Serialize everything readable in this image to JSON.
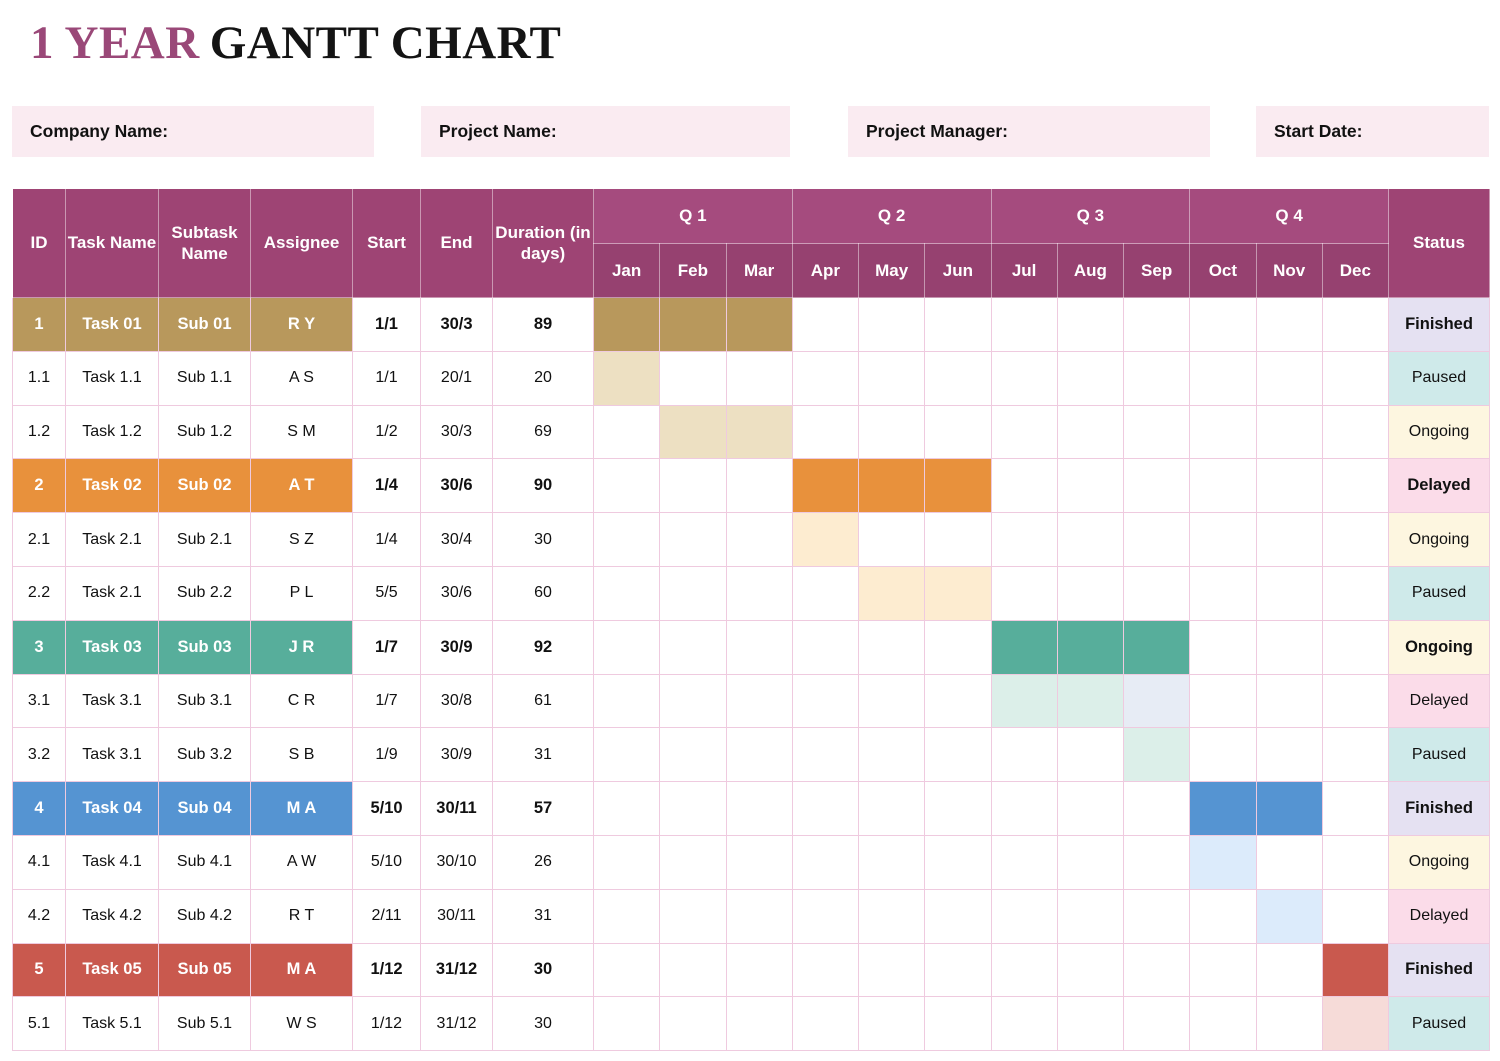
{
  "title": {
    "accent": "1 YEAR",
    "rest": "GANTT CHART",
    "accent_color": "#9A4878"
  },
  "fields": {
    "company": "Company Name:",
    "project": "Project Name:",
    "manager": "Project Manager:",
    "start_date": "Start Date:"
  },
  "table": {
    "headers": {
      "id": "ID",
      "task": "Task Name",
      "subtask": "Subtask Name",
      "assignee": "Assignee",
      "start": "Start",
      "end": "End",
      "duration": "Duration (in days)",
      "status": "Status"
    },
    "quarters": [
      "Q 1",
      "Q 2",
      "Q 3",
      "Q 4"
    ],
    "months": [
      "Jan",
      "Feb",
      "Mar",
      "Apr",
      "May",
      "Jun",
      "Jul",
      "Aug",
      "Sep",
      "Oct",
      "Nov",
      "Dec"
    ],
    "rows": [
      {
        "id": "1",
        "task": "Task 01",
        "subtask": "Sub 01",
        "assignee": "R Y",
        "start": "1/1",
        "end": "30/3",
        "duration": "89",
        "status": "Finished",
        "type": "main",
        "color": "#B8985C",
        "gantt": [
          {
            "m": 1,
            "c": "#B8985C"
          },
          {
            "m": 2,
            "c": "#B8985C"
          },
          {
            "m": 3,
            "c": "#B8985C"
          }
        ]
      },
      {
        "id": "1.1",
        "task": "Task 1.1",
        "subtask": "Sub 1.1",
        "assignee": "A S",
        "start": "1/1",
        "end": "20/1",
        "duration": "20",
        "status": "Paused",
        "type": "sub",
        "gantt": [
          {
            "m": 1,
            "c": "#EDE0C2"
          }
        ]
      },
      {
        "id": "1.2",
        "task": "Task 1.2",
        "subtask": "Sub 1.2",
        "assignee": "S M",
        "start": "1/2",
        "end": "30/3",
        "duration": "69",
        "status": "Ongoing",
        "type": "sub",
        "gantt": [
          {
            "m": 2,
            "c": "#EDE0C2"
          },
          {
            "m": 3,
            "c": "#EDE0C2"
          }
        ]
      },
      {
        "id": "2",
        "task": "Task 02",
        "subtask": "Sub 02",
        "assignee": "A T",
        "start": "1/4",
        "end": "30/6",
        "duration": "90",
        "status": "Delayed",
        "type": "main",
        "color": "#E8913C",
        "gantt": [
          {
            "m": 4,
            "c": "#E8913C"
          },
          {
            "m": 5,
            "c": "#E8913C"
          },
          {
            "m": 6,
            "c": "#E8913C"
          }
        ]
      },
      {
        "id": "2.1",
        "task": "Task 2.1",
        "subtask": "Sub 2.1",
        "assignee": "S Z",
        "start": "1/4",
        "end": "30/4",
        "duration": "30",
        "status": "Ongoing",
        "type": "sub",
        "gantt": [
          {
            "m": 4,
            "c": "#FDECD0"
          }
        ]
      },
      {
        "id": "2.2",
        "task": "Task 2.1",
        "subtask": "Sub 2.2",
        "assignee": "P L",
        "start": "5/5",
        "end": "30/6",
        "duration": "60",
        "status": "Paused",
        "type": "sub",
        "gantt": [
          {
            "m": 5,
            "c": "#FDECD0"
          },
          {
            "m": 6,
            "c": "#FDECD0"
          }
        ]
      },
      {
        "id": "3",
        "task": "Task 03",
        "subtask": "Sub 03",
        "assignee": "J R",
        "start": "1/7",
        "end": "30/9",
        "duration": "92",
        "status": "Ongoing",
        "type": "main",
        "color": "#57AE9B",
        "gantt": [
          {
            "m": 7,
            "c": "#57AE9B"
          },
          {
            "m": 8,
            "c": "#57AE9B"
          },
          {
            "m": 9,
            "c": "#57AE9B"
          }
        ]
      },
      {
        "id": "3.1",
        "task": "Task 3.1",
        "subtask": "Sub 3.1",
        "assignee": "C R",
        "start": "1/7",
        "end": "30/8",
        "duration": "61",
        "status": "Delayed",
        "type": "sub",
        "gantt": [
          {
            "m": 7,
            "c": "#DCEFE9"
          },
          {
            "m": 8,
            "c": "#DCEFE9"
          },
          {
            "m": 9,
            "c": "#E7ECF5"
          }
        ]
      },
      {
        "id": "3.2",
        "task": "Task 3.1",
        "subtask": "Sub 3.2",
        "assignee": "S B",
        "start": "1/9",
        "end": "30/9",
        "duration": "31",
        "status": "Paused",
        "type": "sub",
        "gantt": [
          {
            "m": 9,
            "c": "#DCEFE9"
          }
        ]
      },
      {
        "id": "4",
        "task": "Task 04",
        "subtask": "Sub 04",
        "assignee": "M A",
        "start": "5/10",
        "end": "30/11",
        "duration": "57",
        "status": "Finished",
        "type": "main",
        "color": "#5594D2",
        "gantt": [
          {
            "m": 10,
            "c": "#5594D2"
          },
          {
            "m": 11,
            "c": "#5594D2"
          }
        ]
      },
      {
        "id": "4.1",
        "task": "Task 4.1",
        "subtask": "Sub 4.1",
        "assignee": "A W",
        "start": "5/10",
        "end": "30/10",
        "duration": "26",
        "status": "Ongoing",
        "type": "sub",
        "gantt": [
          {
            "m": 10,
            "c": "#DCEBFB"
          }
        ]
      },
      {
        "id": "4.2",
        "task": "Task 4.2",
        "subtask": "Sub 4.2",
        "assignee": "R T",
        "start": "2/11",
        "end": "30/11",
        "duration": "31",
        "status": "Delayed",
        "type": "sub",
        "gantt": [
          {
            "m": 11,
            "c": "#DCEBFB"
          }
        ]
      },
      {
        "id": "5",
        "task": "Task 05",
        "subtask": "Sub 05",
        "assignee": "M A",
        "start": "1/12",
        "end": "31/12",
        "duration": "30",
        "status": "Finished",
        "type": "main",
        "color": "#C9594E",
        "gantt": [
          {
            "m": 12,
            "c": "#C9594E"
          }
        ]
      },
      {
        "id": "5.1",
        "task": "Task 5.1",
        "subtask": "Sub 5.1",
        "assignee": "W S",
        "start": "1/12",
        "end": "31/12",
        "duration": "30",
        "status": "Paused",
        "type": "sub",
        "gantt": [
          {
            "m": 12,
            "c": "#F6DBD8"
          }
        ]
      }
    ]
  },
  "status_colors": {
    "Finished": "#E5E1F2",
    "Paused": "#CFEAEA",
    "Ongoing": "#FDF6E0",
    "Delayed": "#FBDCE9"
  },
  "palette": {
    "header_purple": "#9E4474",
    "quarter_purple": "#A54B7E",
    "month_purple": "#964170",
    "grid_pink": "#EFCADF",
    "field_bg": "#FAEBF1"
  },
  "chart_data": {
    "type": "table",
    "title": "1 YEAR GANTT CHART",
    "columns": [
      "ID",
      "Task Name",
      "Subtask Name",
      "Assignee",
      "Start",
      "End",
      "Duration (in days)",
      "Jan",
      "Feb",
      "Mar",
      "Apr",
      "May",
      "Jun",
      "Jul",
      "Aug",
      "Sep",
      "Oct",
      "Nov",
      "Dec",
      "Status"
    ],
    "tasks": [
      {
        "id": "1",
        "task": "Task 01",
        "subtask": "Sub 01",
        "assignee": "R Y",
        "start": "1/1",
        "end": "30/3",
        "duration_days": 89,
        "months_active": [
          "Jan",
          "Feb",
          "Mar"
        ],
        "status": "Finished"
      },
      {
        "id": "1.1",
        "task": "Task 1.1",
        "subtask": "Sub 1.1",
        "assignee": "A S",
        "start": "1/1",
        "end": "20/1",
        "duration_days": 20,
        "months_active": [
          "Jan"
        ],
        "status": "Paused"
      },
      {
        "id": "1.2",
        "task": "Task 1.2",
        "subtask": "Sub 1.2",
        "assignee": "S M",
        "start": "1/2",
        "end": "30/3",
        "duration_days": 69,
        "months_active": [
          "Feb",
          "Mar"
        ],
        "status": "Ongoing"
      },
      {
        "id": "2",
        "task": "Task 02",
        "subtask": "Sub 02",
        "assignee": "A T",
        "start": "1/4",
        "end": "30/6",
        "duration_days": 90,
        "months_active": [
          "Apr",
          "May",
          "Jun"
        ],
        "status": "Delayed"
      },
      {
        "id": "2.1",
        "task": "Task 2.1",
        "subtask": "Sub 2.1",
        "assignee": "S Z",
        "start": "1/4",
        "end": "30/4",
        "duration_days": 30,
        "months_active": [
          "Apr"
        ],
        "status": "Ongoing"
      },
      {
        "id": "2.2",
        "task": "Task 2.1",
        "subtask": "Sub 2.2",
        "assignee": "P L",
        "start": "5/5",
        "end": "30/6",
        "duration_days": 60,
        "months_active": [
          "May",
          "Jun"
        ],
        "status": "Paused"
      },
      {
        "id": "3",
        "task": "Task 03",
        "subtask": "Sub 03",
        "assignee": "J R",
        "start": "1/7",
        "end": "30/9",
        "duration_days": 92,
        "months_active": [
          "Jul",
          "Aug",
          "Sep"
        ],
        "status": "Ongoing"
      },
      {
        "id": "3.1",
        "task": "Task 3.1",
        "subtask": "Sub 3.1",
        "assignee": "C R",
        "start": "1/7",
        "end": "30/8",
        "duration_days": 61,
        "months_active": [
          "Jul",
          "Aug",
          "Sep"
        ],
        "status": "Delayed"
      },
      {
        "id": "3.2",
        "task": "Task 3.1",
        "subtask": "Sub 3.2",
        "assignee": "S B",
        "start": "1/9",
        "end": "30/9",
        "duration_days": 31,
        "months_active": [
          "Sep"
        ],
        "status": "Paused"
      },
      {
        "id": "4",
        "task": "Task 04",
        "subtask": "Sub 04",
        "assignee": "M A",
        "start": "5/10",
        "end": "30/11",
        "duration_days": 57,
        "months_active": [
          "Oct",
          "Nov"
        ],
        "status": "Finished"
      },
      {
        "id": "4.1",
        "task": "Task 4.1",
        "subtask": "Sub 4.1",
        "assignee": "A W",
        "start": "5/10",
        "end": "30/10",
        "duration_days": 26,
        "months_active": [
          "Oct"
        ],
        "status": "Ongoing"
      },
      {
        "id": "4.2",
        "task": "Task 4.2",
        "subtask": "Sub 4.2",
        "assignee": "R T",
        "start": "2/11",
        "end": "30/11",
        "duration_days": 31,
        "months_active": [
          "Nov"
        ],
        "status": "Delayed"
      },
      {
        "id": "5",
        "task": "Task 05",
        "subtask": "Sub 05",
        "assignee": "M A",
        "start": "1/12",
        "end": "31/12",
        "duration_days": 30,
        "months_active": [
          "Dec"
        ],
        "status": "Finished"
      },
      {
        "id": "5.1",
        "task": "Task 5.1",
        "subtask": "Sub 5.1",
        "assignee": "W S",
        "start": "1/12",
        "end": "31/12",
        "duration_days": 30,
        "months_active": [
          "Dec"
        ],
        "status": "Paused"
      }
    ]
  }
}
